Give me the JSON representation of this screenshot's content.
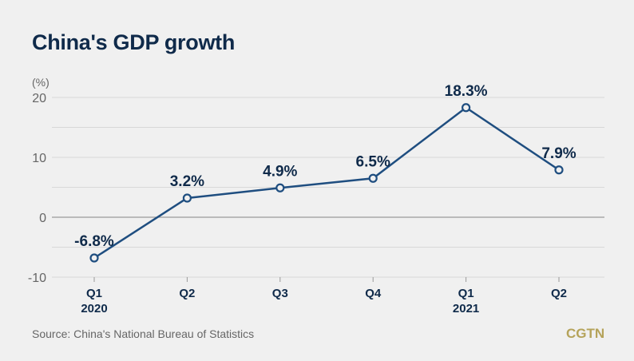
{
  "title": "China's GDP growth",
  "source": "Source: China's National Bureau of Statistics",
  "logo": "CGTN",
  "colors": {
    "line": "#1f4e80",
    "label": "#0f2a4a",
    "logo": "#b5a35a"
  },
  "chart_data": {
    "type": "line",
    "title": "China's GDP growth",
    "ylabel": "(%)",
    "categories": [
      "Q1\n2020",
      "Q2",
      "Q3",
      "Q4",
      "Q1\n2021",
      "Q2"
    ],
    "x_labels": [
      [
        "Q1",
        "2020"
      ],
      [
        "Q2",
        ""
      ],
      [
        "Q3",
        ""
      ],
      [
        "Q4",
        ""
      ],
      [
        "Q1",
        "2021"
      ],
      [
        "Q2",
        ""
      ]
    ],
    "values": [
      -6.8,
      3.2,
      4.9,
      6.5,
      18.3,
      7.9
    ],
    "data_labels": [
      "-6.8%",
      "3.2%",
      "4.9%",
      "6.5%",
      "18.3%",
      "7.9%"
    ],
    "ylim": [
      -10,
      20
    ],
    "yticks": [
      -10,
      0,
      10,
      20
    ],
    "grid": true,
    "legend": "none"
  }
}
